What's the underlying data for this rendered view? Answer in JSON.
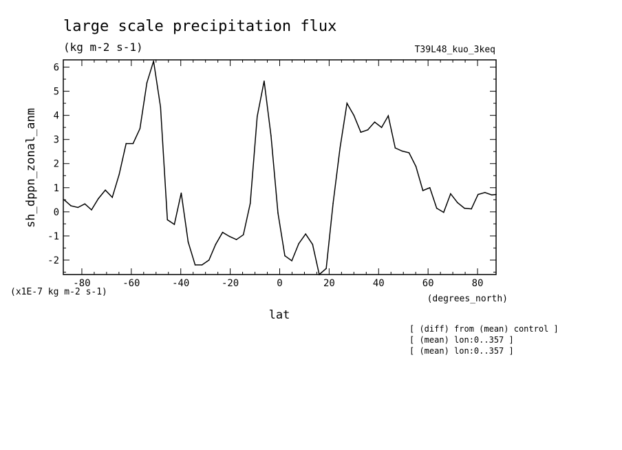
{
  "chart_data": {
    "type": "line",
    "title": "large scale precipitation flux",
    "subtitle": "(kg m-2 s-1)",
    "run_label": "T39L48_kuo_3keq",
    "xlabel": "lat",
    "xunits": "(degrees_north)",
    "ylabel": "sh_dppn_zonal_anm",
    "yunits": "(x1E-7 kg m-2 s-1)",
    "xlim": [
      -87.5,
      87.5
    ],
    "ylim": [
      -2.6,
      6.3
    ],
    "xticks": [
      -80,
      -60,
      -40,
      -20,
      0,
      20,
      40,
      60,
      80
    ],
    "xtick_labels": [
      "-80",
      "-60",
      "-40",
      "-20",
      "0",
      "20",
      "40",
      "60",
      "80"
    ],
    "yticks": [
      -2,
      -1,
      0,
      1,
      2,
      3,
      4,
      5,
      6
    ],
    "ytick_labels": [
      "-2",
      "-1",
      "0",
      "1",
      "2",
      "3",
      "4",
      "5",
      "6"
    ],
    "grid": false,
    "x": [
      -87.2,
      -84.4,
      -81.6,
      -78.8,
      -76.1,
      -73.3,
      -70.5,
      -67.7,
      -64.9,
      -62.1,
      -59.3,
      -56.5,
      -53.7,
      -51.0,
      -48.2,
      -45.4,
      -42.6,
      -39.8,
      -37.0,
      -34.2,
      -31.4,
      -28.6,
      -25.9,
      -23.1,
      -20.3,
      -17.5,
      -14.7,
      -11.9,
      -9.1,
      -6.3,
      -3.5,
      -0.7,
      2.1,
      4.9,
      7.7,
      10.5,
      13.3,
      16.0,
      18.8,
      21.6,
      24.4,
      27.2,
      30.0,
      32.8,
      35.6,
      38.4,
      41.2,
      43.9,
      46.7,
      49.5,
      52.3,
      55.1,
      57.9,
      60.7,
      63.5,
      66.3,
      69.1,
      71.9,
      74.7,
      77.5,
      80.2,
      83.0,
      85.8,
      87.5
    ],
    "series": [
      {
        "values": [
          0.5,
          0.25,
          0.18,
          0.33,
          0.08,
          0.55,
          0.9,
          0.6,
          1.55,
          2.83,
          2.83,
          3.45,
          5.35,
          6.25,
          4.35,
          -0.33,
          -0.52,
          0.78,
          -1.25,
          -2.2,
          -2.2,
          -2.0,
          -1.35,
          -0.85,
          -1.02,
          -1.15,
          -0.95,
          0.35,
          3.95,
          5.42,
          3.15,
          -0.05,
          -1.82,
          -2.03,
          -1.32,
          -0.92,
          -1.35,
          -2.6,
          -2.35,
          0.35,
          2.65,
          4.5,
          4.0,
          3.3,
          3.4,
          3.72,
          3.5,
          3.98,
          2.65,
          2.52,
          2.45,
          1.88,
          0.88,
          1.0,
          0.15,
          -0.02,
          0.75,
          0.38,
          0.15,
          0.12,
          0.72,
          0.8,
          0.7,
          0.72
        ]
      }
    ],
    "notes": [
      "[ (diff) from (mean) control ]",
      "[ (mean) lon:0..357 ]",
      "[ (mean) lon:0..357 ]"
    ]
  }
}
